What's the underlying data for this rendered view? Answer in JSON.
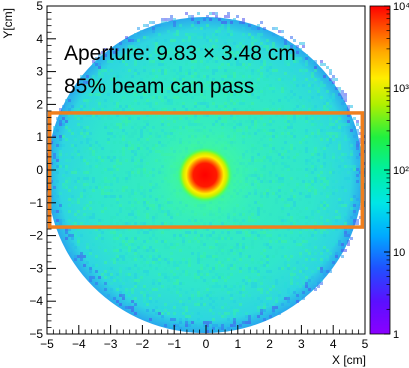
{
  "chart_data": {
    "type": "heatmap",
    "title": "",
    "xlabel": "X [cm]",
    "ylabel": "Y[cm]",
    "xlim": [
      -5,
      5
    ],
    "ylim": [
      -5,
      5
    ],
    "x_ticks": [
      "−5",
      "−4",
      "−3",
      "−2",
      "−1",
      "0",
      "1",
      "2",
      "3",
      "4",
      "5"
    ],
    "y_ticks": [
      "−5",
      "−4",
      "−3",
      "−2",
      "−1",
      "0",
      "1",
      "2",
      "3",
      "4",
      "5"
    ],
    "colorbar": {
      "scale": "log",
      "range": [
        1,
        10000
      ],
      "tick_labels": [
        "1",
        "10",
        "10²",
        "10³",
        "10⁴"
      ],
      "tick_values": [
        1,
        10,
        100,
        1000,
        10000
      ]
    },
    "distribution": {
      "shape": "disk",
      "radius_cm": 5,
      "hotspot_center": [
        0,
        0
      ],
      "hotspot_radius_cm": 0.45,
      "hotspot_peak": 10000,
      "halo_level": 300,
      "background_level": 80,
      "edge_level": 15
    },
    "aperture": {
      "x_range": [
        -4.915,
        4.915
      ],
      "y_range": [
        -1.74,
        1.74
      ],
      "color": "#f07f1e"
    },
    "annotations": [
      "Aperture: 9.83 × 3.48 cm",
      "85% beam can pass"
    ]
  }
}
